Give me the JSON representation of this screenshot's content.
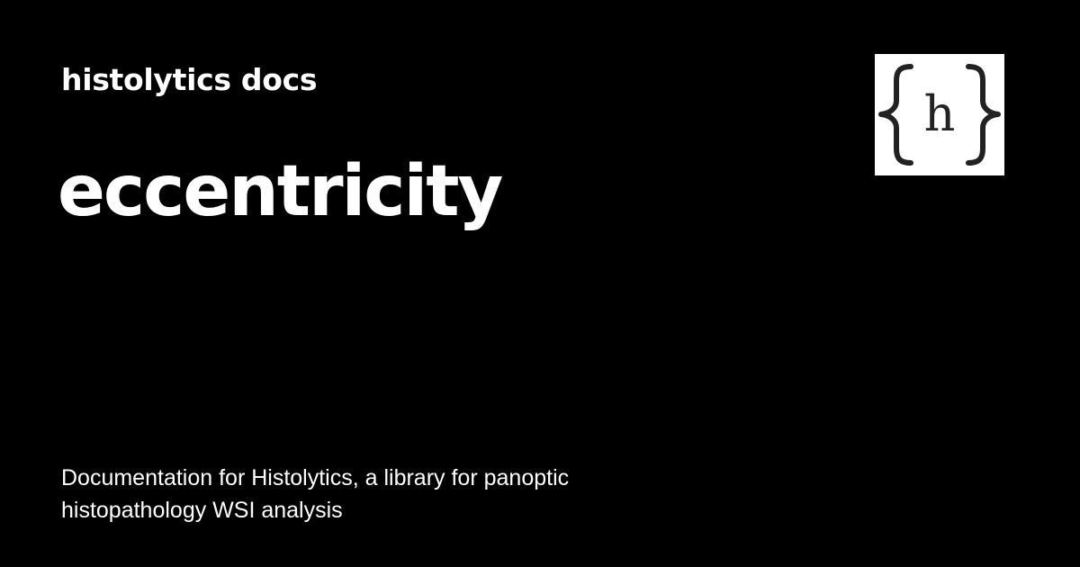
{
  "site": {
    "name": "histolytics docs"
  },
  "page": {
    "title": "eccentricity",
    "description": "Documentation for Histolytics, a library for panoptic histopathology WSI analysis"
  },
  "logo": {
    "icon": "curly-braces-h-logo",
    "glyph": "h",
    "background": "#ffffff",
    "foreground": "#222222"
  },
  "colors": {
    "background": "#000000",
    "text": "#ffffff"
  }
}
